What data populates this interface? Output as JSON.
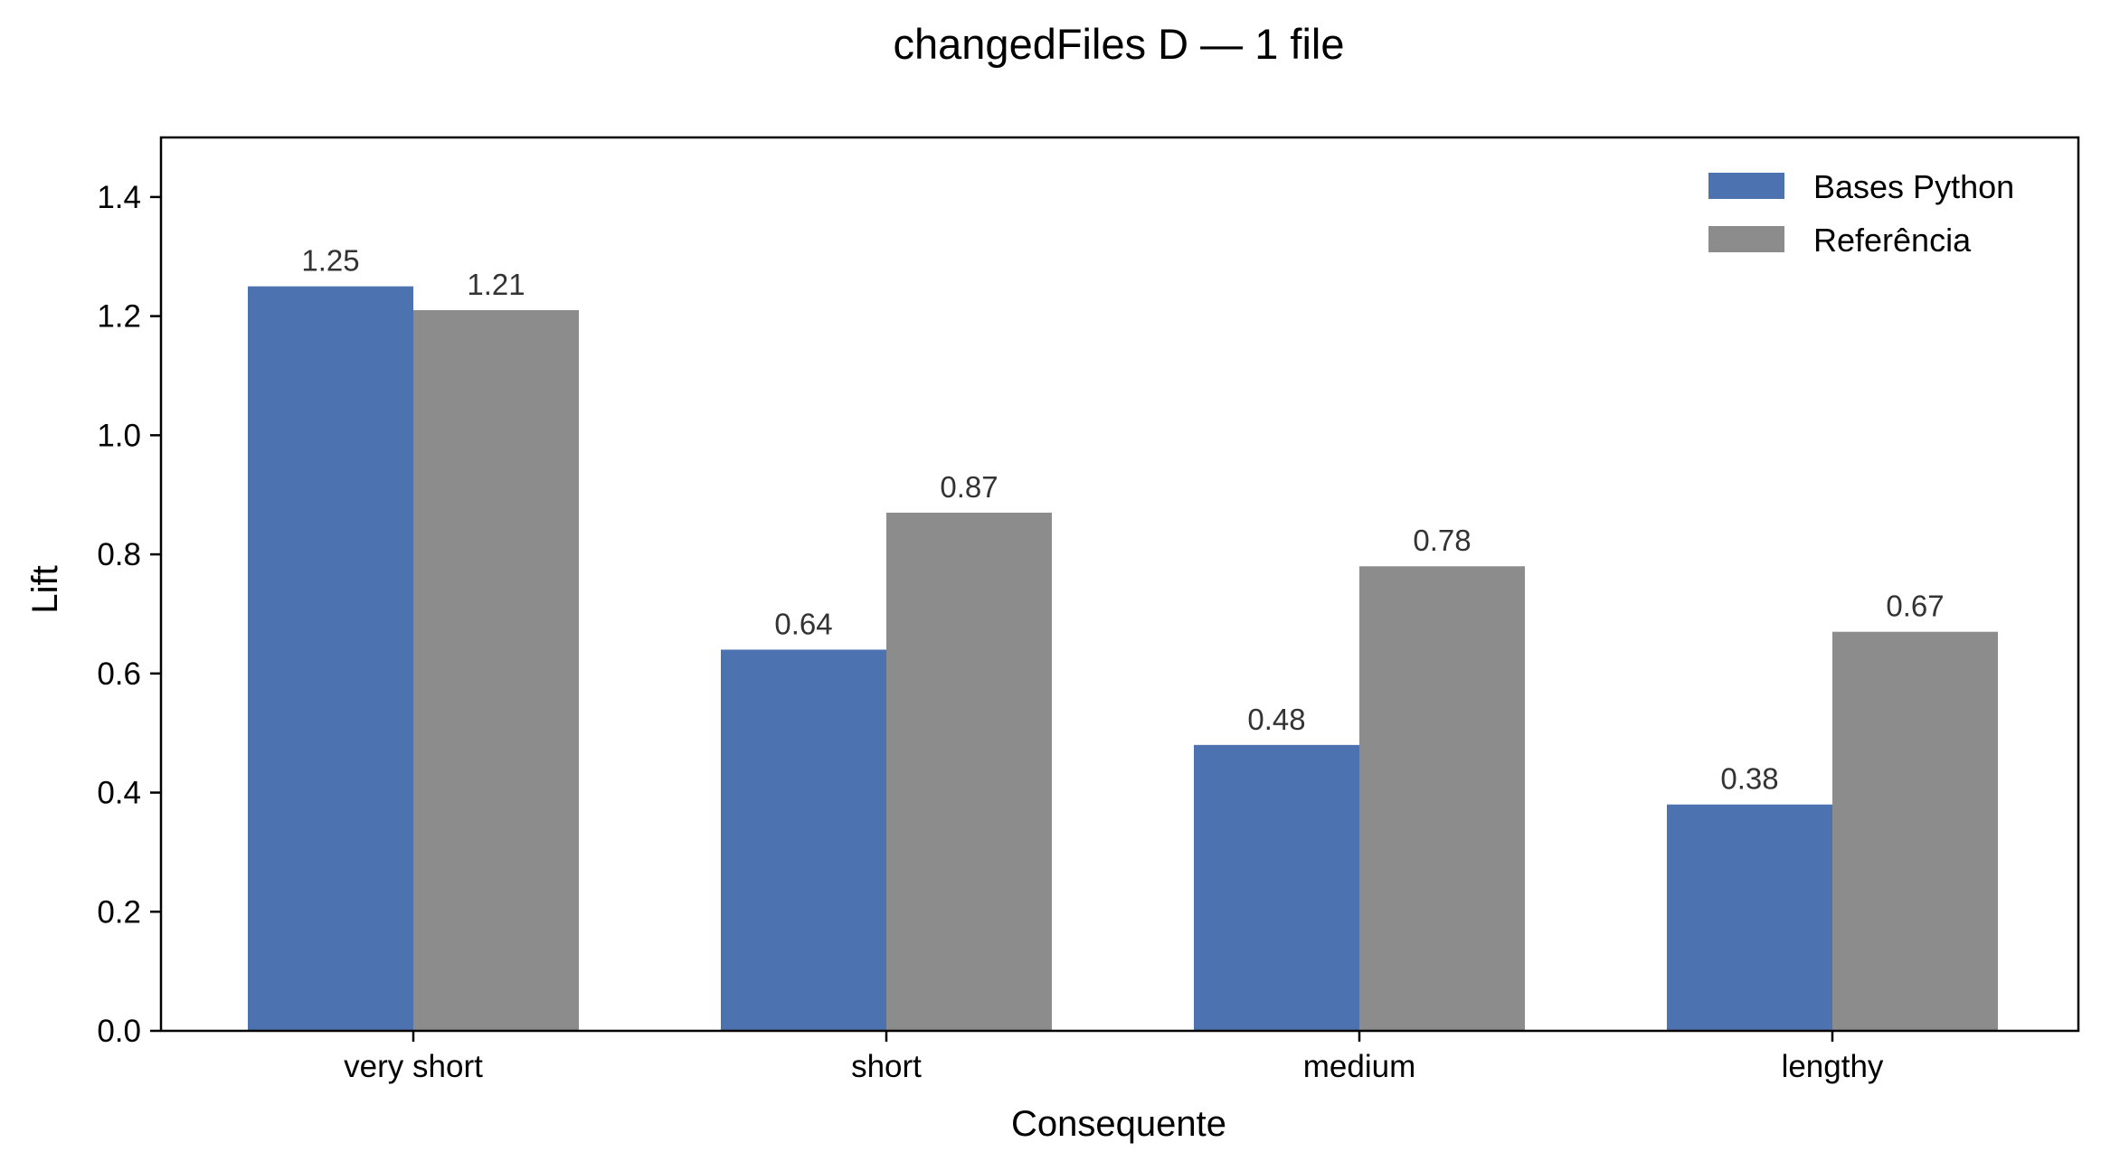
{
  "chart_data": {
    "type": "bar",
    "title": "changedFiles D — 1 file",
    "xlabel": "Consequente",
    "ylabel": "Lift",
    "categories": [
      "very short",
      "short",
      "medium",
      "lengthy"
    ],
    "series": [
      {
        "name": "Bases Python",
        "values": [
          1.25,
          0.64,
          0.48,
          0.38
        ],
        "labels": [
          "1.25",
          "0.64",
          "0.48",
          "0.38"
        ],
        "color": "#4c72b0"
      },
      {
        "name": "Referência",
        "values": [
          1.21,
          0.87,
          0.78,
          0.67
        ],
        "labels": [
          "1.21",
          "0.87",
          "0.78",
          "0.67"
        ],
        "color": "#8c8c8c"
      }
    ],
    "ylim": [
      0,
      1.5
    ],
    "yticks": [
      "0.0",
      "0.2",
      "0.4",
      "0.6",
      "0.8",
      "1.0",
      "1.2",
      "1.4"
    ],
    "grid": false,
    "legend_position": "top-right"
  }
}
